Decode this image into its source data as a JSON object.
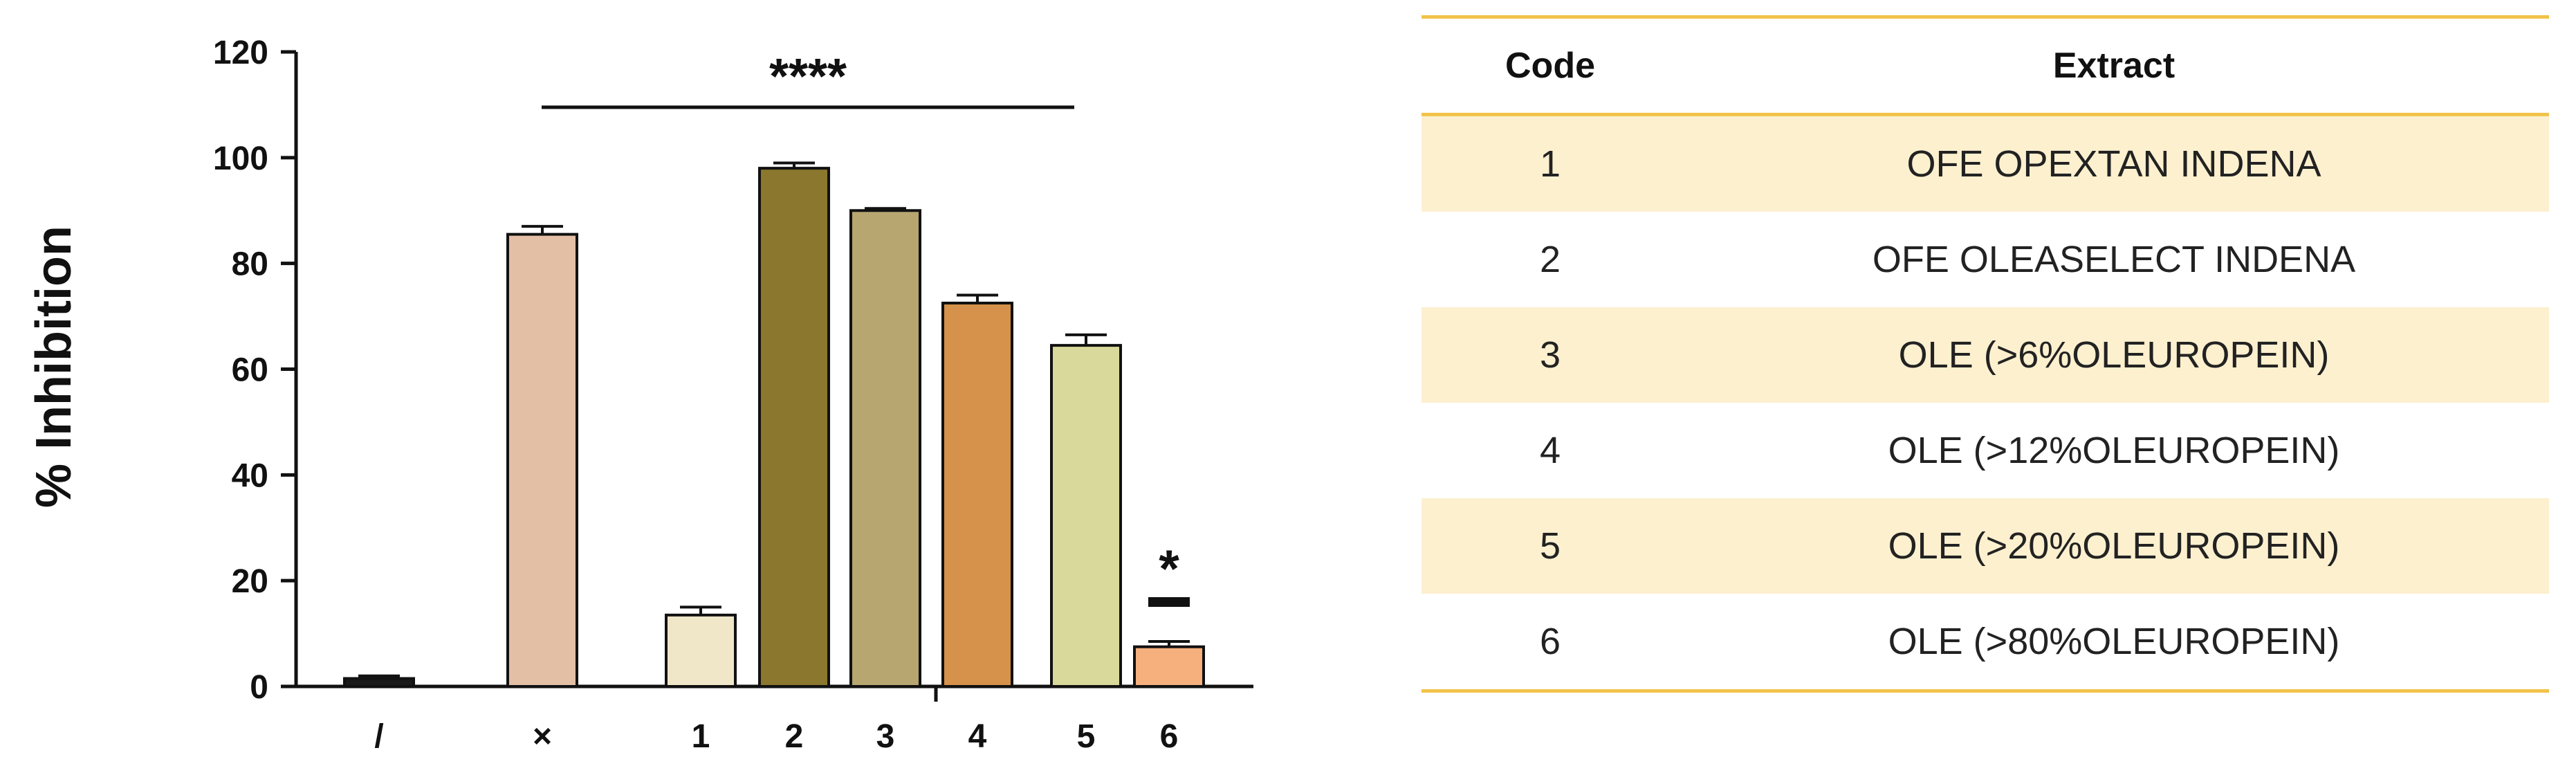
{
  "chart_data": {
    "type": "bar",
    "ylabel": "% Inhibition",
    "ylim": [
      0,
      120
    ],
    "yticks": [
      0,
      20,
      40,
      60,
      80,
      100,
      120
    ],
    "categories": [
      "/",
      "×",
      "1",
      "2",
      "3",
      "4",
      "5",
      "6"
    ],
    "values": [
      1.5,
      85.5,
      13.5,
      98,
      90,
      72.5,
      64.5,
      7.5
    ],
    "errors": [
      0.5,
      1.5,
      1.5,
      1.0,
      0.4,
      1.5,
      2.0,
      1.0
    ],
    "colors": [
      "#1a1a1a",
      "#e3bfa6",
      "#efe7c8",
      "#8b772e",
      "#b7a670",
      "#d6914a",
      "#d8d99a",
      "#f5b07e"
    ],
    "annotations": {
      "bracket_label": "****",
      "bar6_label": "*"
    }
  },
  "table": {
    "headers": {
      "code": "Code",
      "extract": "Extract"
    },
    "rows": [
      {
        "code": "1",
        "extract": "OFE OPEXTAN  INDENA"
      },
      {
        "code": "2",
        "extract": "OFE OLEASELECT INDENA"
      },
      {
        "code": "3",
        "extract": "OLE (>6%OLEUROPEIN)"
      },
      {
        "code": "4",
        "extract": "OLE (>12%OLEUROPEIN)"
      },
      {
        "code": "5",
        "extract": "OLE (>20%OLEUROPEIN)"
      },
      {
        "code": "6",
        "extract": "OLE (>80%OLEUROPEIN)"
      }
    ],
    "accent_color": "#f2c34a",
    "stripe_color": "#fdf0cf"
  }
}
